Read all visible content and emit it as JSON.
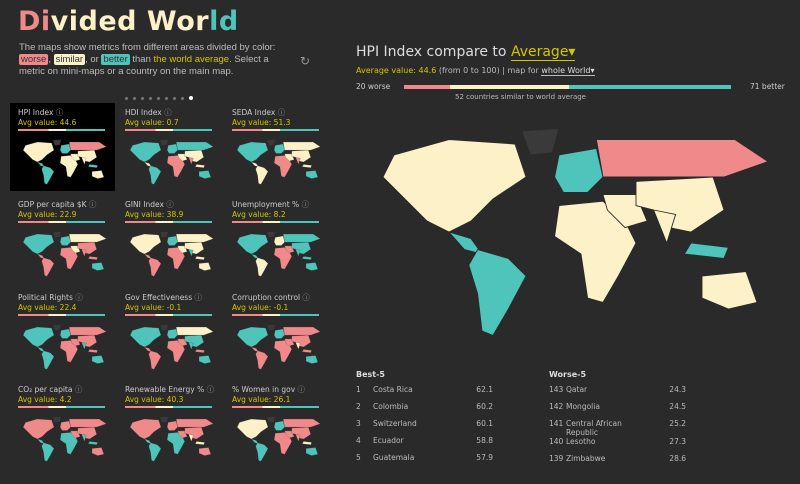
{
  "title_parts": [
    {
      "t": "Di",
      "c": "#f08a8a"
    },
    {
      "t": "vided ",
      "c": "#fdf1c7"
    },
    {
      "t": "Wor",
      "c": "#fdf1c7"
    },
    {
      "t": "ld",
      "c": "#4fc4bb"
    }
  ],
  "intro": {
    "line1": "The maps show metrics from different areas divided by color:",
    "worse": "worse",
    "similar": "similar",
    "or": ", or",
    "better": "better",
    "than": " than ",
    "avg": "the world average",
    "rest": ". Select a metric on mini-maps or a country on the main map.",
    "comma": ","
  },
  "refresh_icon": "refresh-icon",
  "pager": {
    "count": 9,
    "active": 8
  },
  "colors": {
    "worse": "#f08a8a",
    "similar": "#fdf1c7",
    "better": "#4fc4bb",
    "nodata": "#3a3a3a",
    "accent": "#d4c500"
  },
  "metrics": [
    {
      "label": "HPI Index",
      "avg": "Avg value: 44.6",
      "selected": true
    },
    {
      "label": "HDI Index",
      "avg": "Avg value: 0.7"
    },
    {
      "label": "SEDA Index",
      "avg": "Avg value: 51.3"
    },
    {
      "label": "GDP per capita $K",
      "avg": "Avg value: 22.9"
    },
    {
      "label": "GINI Index",
      "avg": "Avg value: 38.9"
    },
    {
      "label": "Unemployment %",
      "avg": "Avg value: 8.2"
    },
    {
      "label": "Political Rights",
      "avg": "Avg value: 22.4"
    },
    {
      "label": "Gov Effectiveness",
      "avg": "Avg value: -0.1"
    },
    {
      "label": "Corruption control",
      "avg": "Avg value: -0.1"
    },
    {
      "label": "CO₂ per capita",
      "avg": "Avg value: 4.2"
    },
    {
      "label": "Renewable Energy %",
      "avg": "Avg value: 40.3"
    },
    {
      "label": "% Women in gov",
      "avg": "Avg value: 26.1"
    }
  ],
  "main": {
    "title": "HPI Index compare to ",
    "compare": "Average▾",
    "avg_label": "Average value: 44.6",
    "range": " (from 0 to 100) | map for ",
    "scope": "whole World▾",
    "worse_count": "20 worse",
    "better_count": "71 better",
    "similar_text": "52 countries similar to world average",
    "counts": {
      "worse": 20,
      "similar": 52,
      "better": 71
    },
    "best_title": "Best-5",
    "best": [
      {
        "r": "1",
        "n": "Costa Rica",
        "v": "62.1"
      },
      {
        "r": "2",
        "n": "Colombia",
        "v": "60.2"
      },
      {
        "r": "3",
        "n": "Switzerland",
        "v": "60.1"
      },
      {
        "r": "4",
        "n": "Ecuador",
        "v": "58.8"
      },
      {
        "r": "5",
        "n": "Guatemala",
        "v": "57.9"
      }
    ],
    "worst_title": "Worse-5",
    "worst": [
      {
        "r": "143",
        "n": "Qatar",
        "v": "24.3"
      },
      {
        "r": "142",
        "n": "Mongolia",
        "v": "24.5"
      },
      {
        "r": "141",
        "n": "Central African Republic",
        "v": "25.2"
      },
      {
        "r": "140",
        "n": "Lesotho",
        "v": "27.3"
      },
      {
        "r": "139",
        "n": "Zimbabwe",
        "v": "28.6"
      }
    ]
  }
}
